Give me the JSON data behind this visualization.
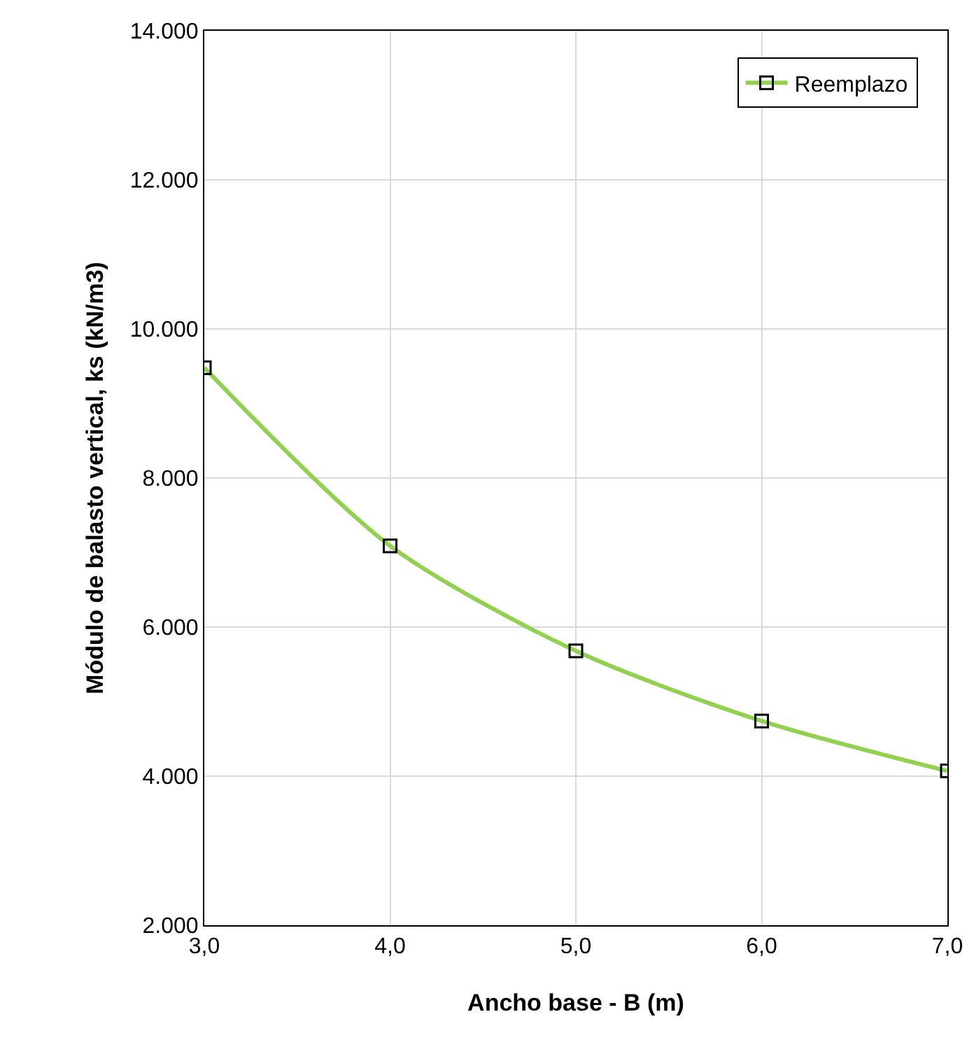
{
  "chart_data": {
    "type": "line",
    "xlabel": "Ancho base - B (m)",
    "ylabel": "Módulo de balasto vertical, ks (kN/m3)",
    "x": [
      3,
      4,
      5,
      6,
      7
    ],
    "series": [
      {
        "name": "Reemplazo",
        "color": "#92d050",
        "values": [
          9480,
          7090,
          5680,
          4740,
          4070
        ]
      }
    ],
    "xlim": [
      3,
      7
    ],
    "xticks": [
      {
        "value": 3,
        "label": "3,0"
      },
      {
        "value": 4,
        "label": "4,0"
      },
      {
        "value": 5,
        "label": "5,0"
      },
      {
        "value": 6,
        "label": "6,0"
      },
      {
        "value": 7,
        "label": "7,0"
      }
    ],
    "ylim": [
      2000,
      14000
    ],
    "yticks": [
      {
        "value": 2000,
        "label": "2.000"
      },
      {
        "value": 4000,
        "label": "4.000"
      },
      {
        "value": 6000,
        "label": "6.000"
      },
      {
        "value": 8000,
        "label": "8.000"
      },
      {
        "value": 10000,
        "label": "10.000"
      },
      {
        "value": 12000,
        "label": "12.000"
      },
      {
        "value": 14000,
        "label": "14.000"
      }
    ],
    "grid": true,
    "legend": "top right",
    "marker": "square",
    "line_style": "solid"
  }
}
